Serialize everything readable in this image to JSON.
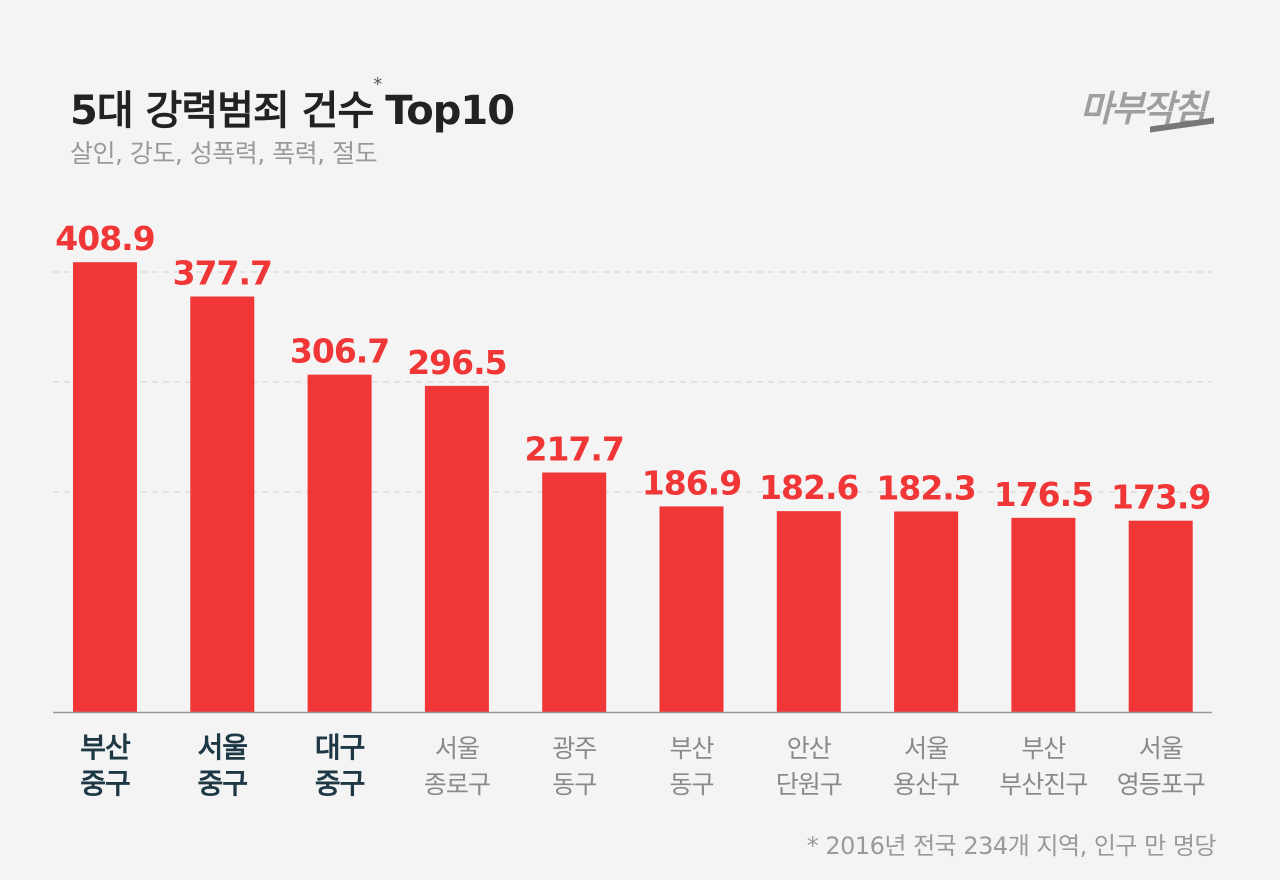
{
  "header": {
    "title": "5대 강력범죄 건수",
    "title_mark": "*",
    "title_suffix": "Top10",
    "subtitle": "살인, 강도, 성폭력, 폭력, 절도",
    "logo": "마부작침"
  },
  "footnote": "* 2016년 전국 234개 지역,  인구 만 명당",
  "chart_data": {
    "type": "bar",
    "categories": [
      [
        "부산",
        "중구"
      ],
      [
        "서울",
        "중구"
      ],
      [
        "대구",
        "중구"
      ],
      [
        "서울",
        "종로구"
      ],
      [
        "광주",
        "동구"
      ],
      [
        "부산",
        "동구"
      ],
      [
        "안산",
        "단원구"
      ],
      [
        "서울",
        "용산구"
      ],
      [
        "부산",
        "부산진구"
      ],
      [
        "서울",
        "영등포구"
      ]
    ],
    "values": [
      408.9,
      377.7,
      306.7,
      296.5,
      217.7,
      186.9,
      182.6,
      182.3,
      176.5,
      173.9
    ],
    "value_labels": [
      "408.9",
      "377.7",
      "306.7",
      "296.5",
      "217.7",
      "186.9",
      "182.6",
      "182.3",
      "176.5",
      "173.9"
    ],
    "highlighted": [
      0,
      1,
      2
    ],
    "ylim": [
      0,
      410
    ],
    "gridlines": [
      200,
      300,
      400
    ],
    "grid": "dashed horizontal",
    "bar_color": "#f03636",
    "highlight_label_color": "#1e3846",
    "label_color": "#8a8a8a"
  }
}
